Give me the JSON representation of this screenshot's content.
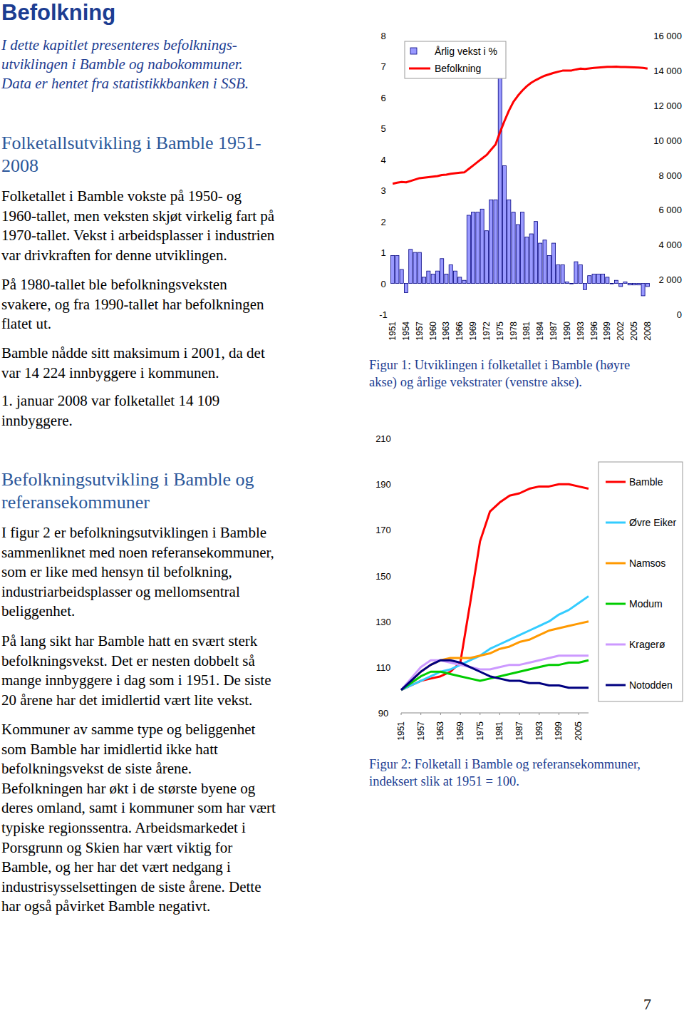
{
  "header": {
    "title": "Befolkning",
    "intro": [
      "I dette kapitlet presenteres befolknings-",
      "utviklingen i Bamble og nabokommuner.",
      "Data er hentet fra statistikkbanken i SSB."
    ]
  },
  "sections": [
    {
      "heading": [
        "Folketallsutvikling i Bamble 1951-",
        "2008"
      ],
      "paragraphs": [
        [
          "Folketallet i Bamble vokste på 1950- og",
          "1960-tallet, men veksten skjøt virkelig fart på",
          "1970-tallet. Vekst i arbeidsplasser i industrien",
          "var drivkraften for denne utviklingen."
        ],
        [
          "På 1980-tallet ble befolkningsveksten",
          "svakere, og fra 1990-tallet har befolkningen",
          "flatet ut."
        ],
        [
          "Bamble nådde sitt maksimum i 2001, da det",
          "var 14 224 innbyggere i kommunen."
        ],
        [
          "1. januar 2008 var folketallet 14 109",
          "innbyggere."
        ]
      ]
    },
    {
      "heading": [
        "Befolkningsutvikling i Bamble og",
        "referansekommuner"
      ],
      "paragraphs": [
        [
          "I figur 2 er befolkningsutviklingen i Bamble",
          "sammenliknet med noen referansekommuner,",
          "som er like med hensyn til befolkning,",
          "industriarbeidsplasser og mellomsentral",
          "beliggenhet."
        ],
        [
          "På lang sikt har Bamble hatt en svært sterk",
          "befolkningsvekst. Det er nesten dobbelt så",
          "mange innbyggere i dag som i 1951. De siste",
          "20 årene har det imidlertid vært lite vekst."
        ],
        [
          "Kommuner av samme type og beliggenhet",
          "som Bamble har imidlertid ikke hatt",
          "befolkningsvekst de siste årene.",
          "Befolkningen har økt i de største byene og",
          "deres omland, samt i kommuner som har vært",
          "typiske regionssentra. Arbeidsmarkedet i",
          "Porsgrunn og Skien har vært viktig for",
          "Bamble, og her har det vært nedgang i",
          "industrisysselsettingen de siste årene. Dette",
          "har også påvirket Bamble negativt."
        ]
      ]
    }
  ],
  "captions": [
    [
      "Figur 1: Utviklingen i folketallet i Bamble (høyre",
      "akse) og årlige vekstrater (venstre akse)."
    ],
    [
      "Figur 2: Folketall i Bamble og referansekommuner,",
      "indeksert slik at 1951 = 100."
    ]
  ],
  "page_number": "7",
  "chart_data": [
    {
      "type": "bar",
      "categories": [
        "1951",
        null,
        null,
        "1954",
        null,
        null,
        "1957",
        null,
        null,
        "1960",
        null,
        null,
        "1963",
        null,
        null,
        "1966",
        null,
        null,
        "1969",
        null,
        null,
        "1972",
        null,
        null,
        "1975",
        null,
        null,
        "1978",
        null,
        null,
        "1981",
        null,
        null,
        "1984",
        null,
        null,
        "1987",
        null,
        null,
        "1990",
        null,
        null,
        "1993",
        null,
        null,
        "1996",
        null,
        null,
        "1999",
        null,
        null,
        "2002",
        null,
        null,
        "2005",
        null,
        null,
        "2008"
      ],
      "series": [
        {
          "name": "Årlig vekst i %",
          "type": "bar",
          "color": "#9999ff",
          "values": [
            0.9,
            0.9,
            0.45,
            -0.3,
            1.1,
            1.0,
            1.0,
            0.2,
            0.4,
            0.3,
            0.4,
            0.8,
            0.3,
            0.6,
            0.4,
            0.2,
            0.1,
            2.2,
            2.3,
            2.3,
            2.4,
            1.7,
            2.7,
            2.7,
            7.1,
            3.8,
            2.7,
            2.3,
            1.9,
            2.3,
            1.5,
            1.6,
            2.0,
            1.3,
            1.4,
            0.9,
            1.3,
            0.6,
            0.6,
            0.05,
            0.0,
            0.7,
            0.6,
            -0.2,
            0.25,
            0.3,
            0.3,
            0.3,
            0.2,
            0.0,
            0.1,
            -0.1,
            0.05,
            -0.05,
            -0.05,
            -0.05,
            -0.4,
            -0.1
          ]
        },
        {
          "name": "Befolkning",
          "type": "line",
          "color": "#ff0000",
          "axis": "y2",
          "values": [
            7500,
            7560,
            7600,
            7580,
            7660,
            7740,
            7820,
            7850,
            7880,
            7910,
            7940,
            8000,
            8020,
            8070,
            8100,
            8130,
            8150,
            8350,
            8550,
            8750,
            8950,
            9150,
            9450,
            9750,
            10450,
            11100,
            11700,
            12200,
            12550,
            12850,
            13100,
            13300,
            13450,
            13580,
            13700,
            13780,
            13860,
            13930,
            13990,
            14000,
            14000,
            14060,
            14110,
            14090,
            14120,
            14150,
            14170,
            14190,
            14210,
            14210,
            14224,
            14200,
            14200,
            14190,
            14180,
            14170,
            14150,
            14109
          ]
        }
      ],
      "ylim": [
        -1,
        8
      ],
      "yticks": [
        -1,
        0,
        1,
        2,
        3,
        4,
        5,
        6,
        7,
        8
      ],
      "y2lim": [
        0,
        16000
      ],
      "y2ticks": [
        0,
        {
          "value": 2000,
          "label": "2 000"
        },
        {
          "value": 4000,
          "label": "4 000"
        },
        {
          "value": 6000,
          "label": "6 000"
        },
        {
          "value": 8000,
          "label": "8 000"
        },
        {
          "value": 10000,
          "label": "10 000"
        },
        {
          "value": 12000,
          "label": "12 000"
        },
        {
          "value": 14000,
          "label": "14 000"
        },
        {
          "value": 16000,
          "label": "16 000"
        }
      ],
      "legend": "top-left"
    },
    {
      "type": "line",
      "x": [
        1951,
        1954,
        1957,
        1960,
        1963,
        1966,
        1969,
        1972,
        1975,
        1978,
        1981,
        1984,
        1987,
        1990,
        1993,
        1996,
        1999,
        2002,
        2005,
        2008
      ],
      "series": [
        {
          "name": "Bamble",
          "color": "#ff0000",
          "values": [
            100,
            102,
            104,
            105,
            106,
            108,
            112,
            138,
            165,
            178,
            182,
            185,
            186,
            188,
            189,
            189,
            190,
            190,
            189,
            188
          ]
        },
        {
          "name": "Øvre Eiker",
          "color": "#33ccff",
          "values": [
            100,
            102,
            104,
            106,
            108,
            109,
            111,
            113,
            115,
            118,
            120,
            122,
            124,
            126,
            128,
            130,
            133,
            135,
            138,
            141
          ]
        },
        {
          "name": "Namsos",
          "color": "#ff9900",
          "values": [
            100,
            104,
            108,
            111,
            113,
            114,
            114,
            114,
            115,
            116,
            118,
            119,
            121,
            122,
            124,
            126,
            127,
            128,
            129,
            130
          ]
        },
        {
          "name": "Modum",
          "color": "#00cc00",
          "values": [
            100,
            103,
            106,
            108,
            108,
            107,
            106,
            105,
            104,
            105,
            106,
            107,
            108,
            109,
            110,
            111,
            111,
            112,
            112,
            113
          ]
        },
        {
          "name": "Kragerø",
          "color": "#cc99ff",
          "values": [
            100,
            105,
            110,
            113,
            113,
            112,
            111,
            110,
            109,
            109,
            110,
            111,
            111,
            112,
            113,
            114,
            115,
            115,
            115,
            115
          ]
        },
        {
          "name": "Notodden",
          "color": "#000080",
          "values": [
            100,
            104,
            108,
            111,
            113,
            113,
            112,
            110,
            108,
            106,
            105,
            104,
            104,
            103,
            103,
            102,
            102,
            101,
            101,
            101
          ]
        }
      ],
      "xlim": [
        1951,
        2008
      ],
      "xticks": [
        1951,
        1957,
        1963,
        1969,
        1975,
        1981,
        1987,
        1993,
        1999,
        2005
      ],
      "ylim": [
        90,
        210
      ],
      "yticks": [
        90,
        110,
        130,
        150,
        170,
        190,
        210
      ],
      "legend": "right"
    }
  ]
}
